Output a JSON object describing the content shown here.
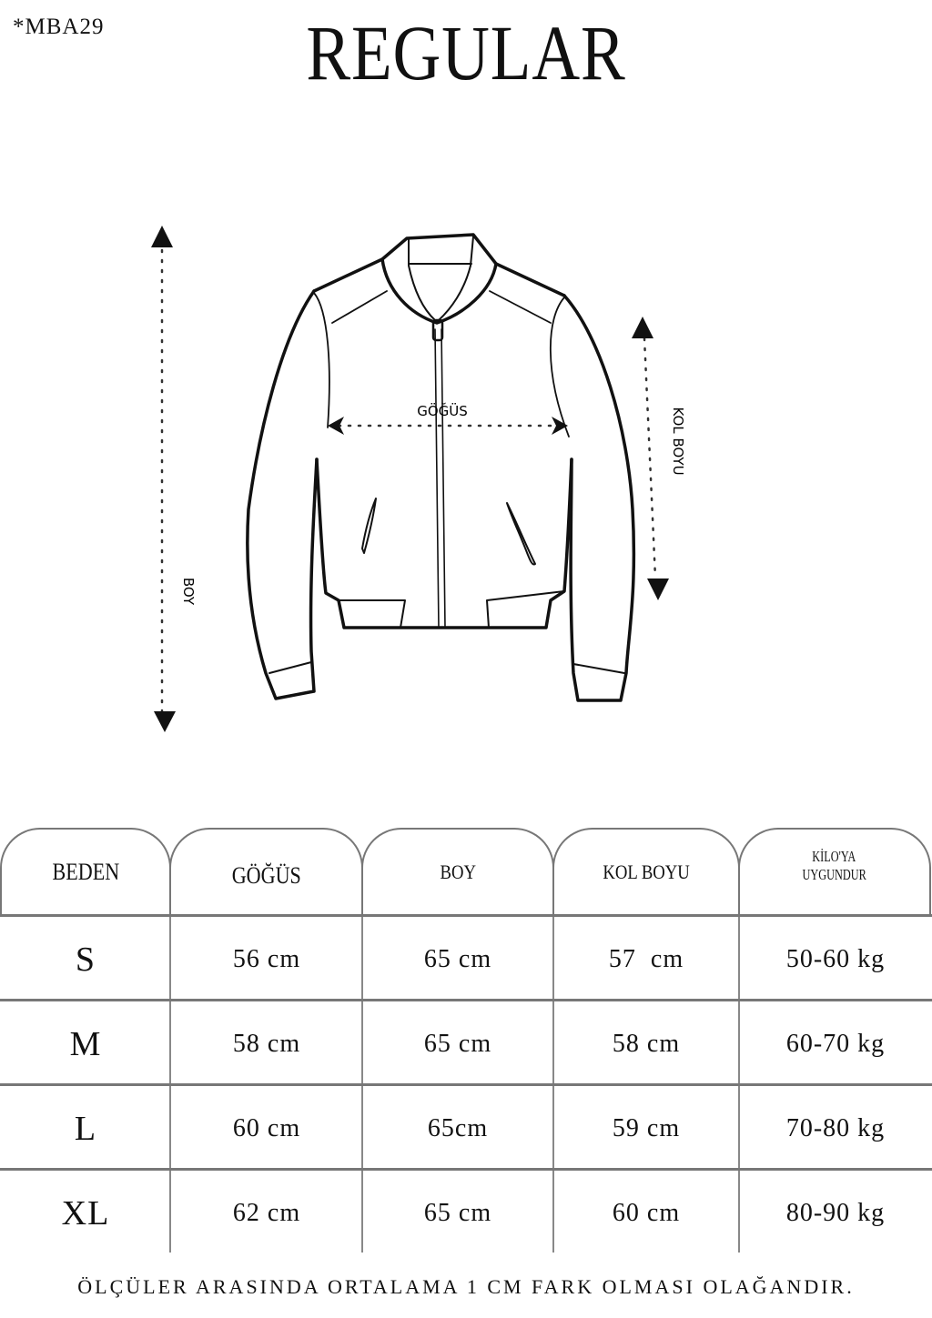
{
  "product_code": "*MBA29",
  "fit_title": "REGULAR",
  "diagram": {
    "chest_label": "GÖĞÜS",
    "length_label": "BOY",
    "sleeve_label": "KOL BOYU"
  },
  "table": {
    "headers": [
      "BEDEN",
      "GÖĞÜS",
      "BOY",
      "KOL BOYU",
      "KİLO'YA UYGUNDUR"
    ],
    "header_kilo_line1": "KİLO'YA",
    "header_kilo_line2": "UYGUNDUR",
    "rows": [
      [
        "S",
        "56 cm",
        "65 cm",
        "57  cm",
        "50-60 kg"
      ],
      [
        "M",
        "58 cm",
        "65 cm",
        "58 cm",
        "60-70 kg"
      ],
      [
        "L",
        "60 cm",
        "65cm",
        "59 cm",
        "70-80 kg"
      ],
      [
        "XL",
        "62 cm",
        "65 cm",
        "60 cm",
        "80-90 kg"
      ]
    ]
  },
  "footer_note": "ÖLÇÜLER ARASINDA ORTALAMA 1 CM FARK OLMASI OLAĞANDIR."
}
